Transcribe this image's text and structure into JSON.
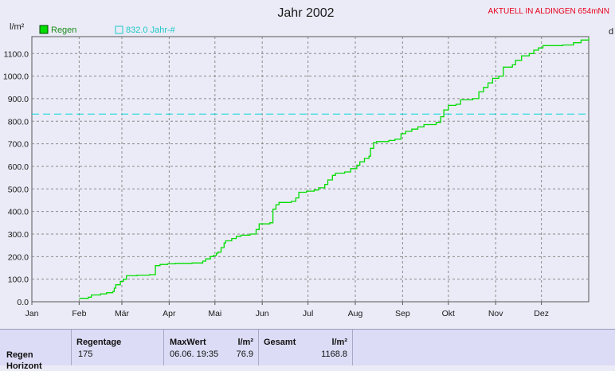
{
  "station": "AKTUELL IN ALDINGEN 654mNN",
  "right_edge_char": "d",
  "chart_data": {
    "type": "line",
    "title": "Jahr 2002",
    "ylabel": "l/m²",
    "ylim": [
      0,
      1175
    ],
    "y_ticks": [
      0,
      100,
      200,
      300,
      400,
      500,
      600,
      700,
      800,
      900,
      1000,
      1100
    ],
    "y_tick_labels": [
      "0.0",
      "100.0",
      "200.0",
      "300.0",
      "400.0",
      "500.0",
      "600.0",
      "700.0",
      "800.0",
      "900.0",
      "1000.0",
      "1100.0"
    ],
    "x_unit": "day of year",
    "xlim": [
      1,
      366
    ],
    "x_tick_labels": [
      "Jan",
      "Feb",
      "Mär",
      "Apr",
      "Mai",
      "Jun",
      "Jul",
      "Aug",
      "Sep",
      "Okt",
      "Nov",
      "Dez"
    ],
    "x_tick_days": [
      1,
      32,
      60,
      91,
      121,
      152,
      182,
      213,
      244,
      274,
      305,
      335
    ],
    "grid": true,
    "legend_position": "top-left",
    "series": [
      {
        "name": "Regen",
        "color": "#00dd00",
        "points": [
          [
            32,
            15
          ],
          [
            38,
            20
          ],
          [
            40,
            30
          ],
          [
            46,
            35
          ],
          [
            50,
            40
          ],
          [
            54,
            45
          ],
          [
            55,
            60
          ],
          [
            56,
            75
          ],
          [
            59,
            90
          ],
          [
            61,
            100
          ],
          [
            63,
            115
          ],
          [
            70,
            118
          ],
          [
            78,
            120
          ],
          [
            82,
            160
          ],
          [
            85,
            165
          ],
          [
            90,
            168
          ],
          [
            95,
            170
          ],
          [
            106,
            172
          ],
          [
            113,
            180
          ],
          [
            115,
            190
          ],
          [
            118,
            200
          ],
          [
            120,
            205
          ],
          [
            122,
            215
          ],
          [
            123,
            220
          ],
          [
            125,
            240
          ],
          [
            127,
            260
          ],
          [
            128,
            270
          ],
          [
            132,
            280
          ],
          [
            135,
            290
          ],
          [
            138,
            295
          ],
          [
            144,
            300
          ],
          [
            148,
            320
          ],
          [
            150,
            345
          ],
          [
            157,
            350
          ],
          [
            159,
            410
          ],
          [
            161,
            430
          ],
          [
            163,
            440
          ],
          [
            171,
            445
          ],
          [
            174,
            460
          ],
          [
            176,
            485
          ],
          [
            181,
            490
          ],
          [
            186,
            495
          ],
          [
            189,
            505
          ],
          [
            193,
            520
          ],
          [
            195,
            540
          ],
          [
            198,
            560
          ],
          [
            200,
            570
          ],
          [
            206,
            575
          ],
          [
            210,
            590
          ],
          [
            214,
            605
          ],
          [
            216,
            620
          ],
          [
            219,
            635
          ],
          [
            222,
            645
          ],
          [
            223,
            680
          ],
          [
            225,
            705
          ],
          [
            227,
            710
          ],
          [
            235,
            715
          ],
          [
            239,
            720
          ],
          [
            243,
            745
          ],
          [
            246,
            755
          ],
          [
            250,
            765
          ],
          [
            254,
            775
          ],
          [
            258,
            785
          ],
          [
            266,
            795
          ],
          [
            269,
            820
          ],
          [
            271,
            850
          ],
          [
            274,
            870
          ],
          [
            279,
            875
          ],
          [
            282,
            895
          ],
          [
            290,
            900
          ],
          [
            294,
            930
          ],
          [
            297,
            950
          ],
          [
            300,
            970
          ],
          [
            303,
            990
          ],
          [
            307,
            1000
          ],
          [
            310,
            1040
          ],
          [
            316,
            1050
          ],
          [
            318,
            1070
          ],
          [
            322,
            1090
          ],
          [
            327,
            1100
          ],
          [
            330,
            1115
          ],
          [
            333,
            1125
          ],
          [
            336,
            1135
          ],
          [
            349,
            1138
          ],
          [
            356,
            1148
          ],
          [
            361,
            1160
          ],
          [
            366,
            1169
          ]
        ]
      },
      {
        "name": "832.0 Jahr-#",
        "color": "#00d8d8",
        "constant": 832.0,
        "style": "dashed"
      }
    ]
  },
  "stats": {
    "row_label_1": "Regen",
    "row_label_2": "Horizont",
    "regentage_header": "Regentage",
    "regentage_value": "175",
    "maxwert_header": "MaxWert",
    "maxwert_unit": "l/m²",
    "maxwert_time": "06.06. 19:35",
    "maxwert_value": "76.9",
    "gesamt_header": "Gesamt",
    "gesamt_unit": "l/m²",
    "gesamt_value": "1168.8"
  }
}
